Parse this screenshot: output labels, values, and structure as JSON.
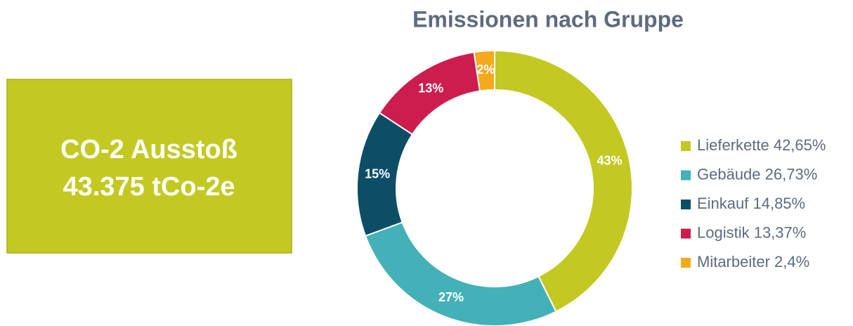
{
  "kpi_box": {
    "label": "CO-2 Ausstoß",
    "value": "43.375 tCo-2e",
    "color": "#c3c922"
  },
  "chart_data": {
    "type": "donut",
    "title": "Emissionen nach Gruppe",
    "categories": [
      "Lieferkette 42,65%",
      "Gebäude 26,73%",
      "Einkauf 14,85%",
      "Logistik 13,37%",
      "Mitarbeiter 2,4%"
    ],
    "values": [
      42.65,
      26.73,
      14.85,
      13.37,
      2.4
    ],
    "value_labels": [
      "43%",
      "27%",
      "15%",
      "13%",
      "2%"
    ],
    "colors": [
      "#c3c922",
      "#44b0b8",
      "#0d4d66",
      "#cc1d4e",
      "#f5a91c"
    ],
    "legend": "right"
  }
}
